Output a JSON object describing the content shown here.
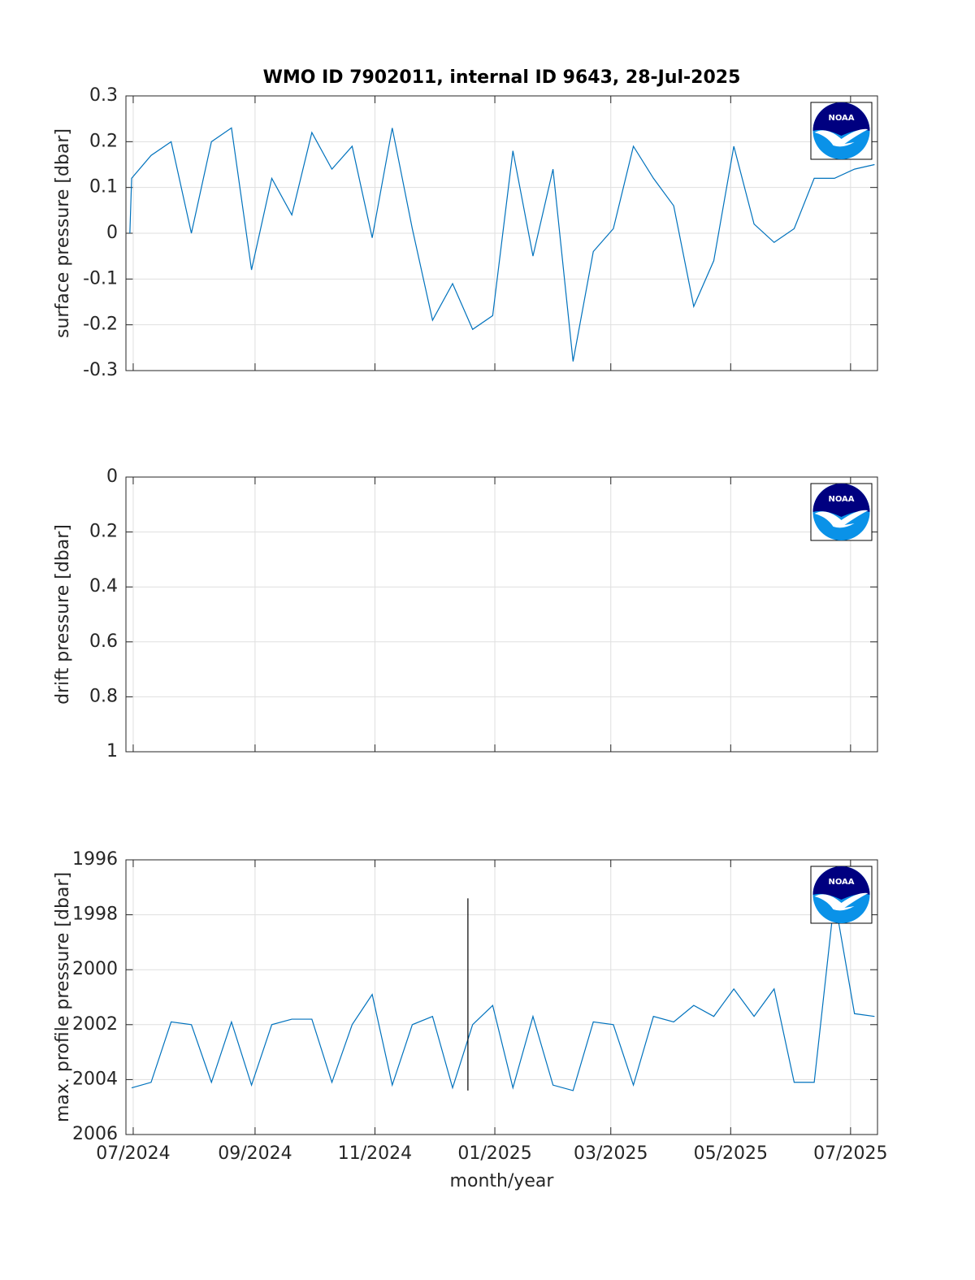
{
  "chart_data": [
    {
      "type": "line",
      "title": "WMO ID 7902011, internal ID 9643, 28-Jul-2025",
      "ylabel": "surface pressure [dbar]",
      "logo": "NOAA",
      "x": [
        -1.7,
        -0.8,
        9.1,
        19.3,
        29.6,
        39.8,
        50.0,
        60.2,
        70.5,
        80.7,
        90.9,
        101.1,
        111.4,
        121.6,
        131.8,
        142.0,
        152.3,
        162.5,
        172.7,
        182.9,
        193.2,
        203.4,
        213.6,
        223.8,
        234.1,
        244.3,
        254.5,
        264.7,
        275.0,
        285.2,
        295.4,
        305.6,
        315.9,
        326.1,
        336.3,
        346.5,
        356.8,
        367.0,
        377.2
      ],
      "series": [
        {
          "color": "#0072bd",
          "values": [
            0,
            0.12,
            0.17,
            0.2,
            0,
            0.2,
            0.23,
            -0.08,
            0.12,
            0.04,
            0.22,
            0.14,
            0.19,
            -0.01,
            0.23,
            0.01,
            -0.19,
            -0.11,
            -0.21,
            -0.18,
            0.18,
            -0.05,
            0.14,
            -0.28,
            -0.04,
            0.01,
            0.19,
            0.12,
            0.06,
            -0.16,
            -0.06,
            0.19,
            0.02,
            -0.02,
            0.01,
            0.12,
            0.12,
            0.14,
            0.15
          ]
        }
      ],
      "xlim": [
        -3.7,
        378.7
      ],
      "xticks": [
        0,
        62,
        123,
        184,
        243,
        304,
        365
      ],
      "ylim": [
        -0.3,
        0.3
      ],
      "yticks": [
        -0.3,
        -0.2,
        -0.1,
        0,
        0.1,
        0.2,
        0.3
      ],
      "y_direction": "normal",
      "grid": true
    },
    {
      "type": "line",
      "ylabel": "drift pressure [dbar]",
      "logo": "NOAA",
      "xlim": [
        -3.7,
        378.7
      ],
      "xticks": [
        0,
        62,
        123,
        184,
        243,
        304,
        365
      ],
      "ylim": [
        0,
        1
      ],
      "yticks": [
        0,
        0.2,
        0.4,
        0.6,
        0.8,
        1
      ],
      "y_direction": "reverse",
      "grid": true
    },
    {
      "type": "line",
      "ylabel": "max. profile pressure [dbar]",
      "xlabel": "month/year",
      "logo": "NOAA",
      "x": [
        -0.8,
        9.1,
        19.3,
        29.6,
        39.8,
        50.0,
        60.2,
        70.5,
        80.7,
        90.9,
        101.1,
        111.4,
        121.6,
        131.8,
        142.0,
        152.3,
        162.5,
        172.7,
        182.9,
        193.2,
        203.4,
        213.6,
        223.8,
        234.1,
        244.3,
        254.5,
        264.7,
        275.0,
        285.2,
        295.4,
        305.6,
        315.9,
        326.1,
        336.3,
        346.5,
        356.8,
        367.0,
        377.2
      ],
      "series": [
        {
          "color": "#0072bd",
          "values": [
            2004.3,
            2004.1,
            2001.9,
            2002.0,
            2004.1,
            2001.9,
            2004.2,
            2002.0,
            2001.8,
            2001.8,
            2004.1,
            2002.0,
            2000.9,
            2004.2,
            2002.0,
            2001.7,
            2004.3,
            2002.0,
            2001.3,
            2004.3,
            2001.7,
            2004.2,
            2004.4,
            2001.9,
            2002.0,
            2004.2,
            2001.7,
            2001.9,
            2001.3,
            2001.7,
            2000.7,
            2001.7,
            2000.7,
            2004.1,
            2004.1,
            1997.4,
            2001.6,
            2001.7
          ]
        }
      ],
      "vlines": [
        {
          "x": 170.3,
          "ymin": 1997.4,
          "ymax": 2004.4,
          "color": "#000000"
        }
      ],
      "xlim": [
        -3.7,
        378.7
      ],
      "xticks": [
        {
          "value": 0,
          "label": "07/2024"
        },
        {
          "value": 62,
          "label": "09/2024"
        },
        {
          "value": 123,
          "label": "11/2024"
        },
        {
          "value": 184,
          "label": "01/2025"
        },
        {
          "value": 243,
          "label": "03/2025"
        },
        {
          "value": 304,
          "label": "05/2025"
        },
        {
          "value": 365,
          "label": "07/2025"
        }
      ],
      "ylim": [
        1996,
        2006
      ],
      "yticks": [
        1996,
        1998,
        2000,
        2002,
        2004,
        2006
      ],
      "y_direction": "reverse",
      "grid": true
    }
  ]
}
